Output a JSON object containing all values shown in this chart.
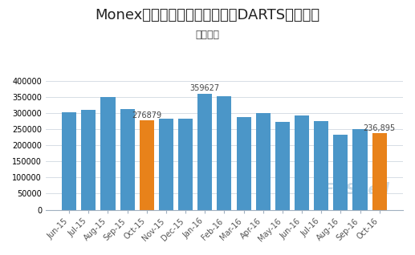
{
  "title": "Monex集团全球日均收入交易（DARTS）情况图",
  "subtitle": "单位：笔",
  "categories": [
    "Jun-15",
    "Jul-15",
    "Aug-15",
    "Sep-15",
    "Oct-15",
    "Nov-15",
    "Dec-15",
    "Jan-16",
    "Feb-16",
    "Mar-16",
    "Apr-16",
    "May-16",
    "Jun-16",
    "Jul-16",
    "Aug-16",
    "Sep-16",
    "Oct-16"
  ],
  "values": [
    302000,
    309000,
    350000,
    312000,
    276879,
    281000,
    283000,
    359627,
    352000,
    287000,
    299000,
    272000,
    293000,
    275000,
    232000,
    250000,
    236895
  ],
  "bar_color_default": "#4b96c8",
  "bar_color_highlight": "#e8821a",
  "highlight_indices": [
    4,
    16
  ],
  "annotations": {
    "4": "276879",
    "7": "359627",
    "16": "236,895"
  },
  "ylim": [
    0,
    420000
  ],
  "yticks": [
    0,
    50000,
    100000,
    150000,
    200000,
    250000,
    300000,
    350000,
    400000
  ],
  "title_fontsize": 13,
  "subtitle_fontsize": 9,
  "tick_fontsize": 7,
  "annot_fontsize": 7,
  "background_color": "#ffffff",
  "grid_color": "#d0d8e0",
  "watermark_text": "FXShell",
  "watermark_color": "#b8cfe0",
  "spine_color": "#a0b0c0"
}
